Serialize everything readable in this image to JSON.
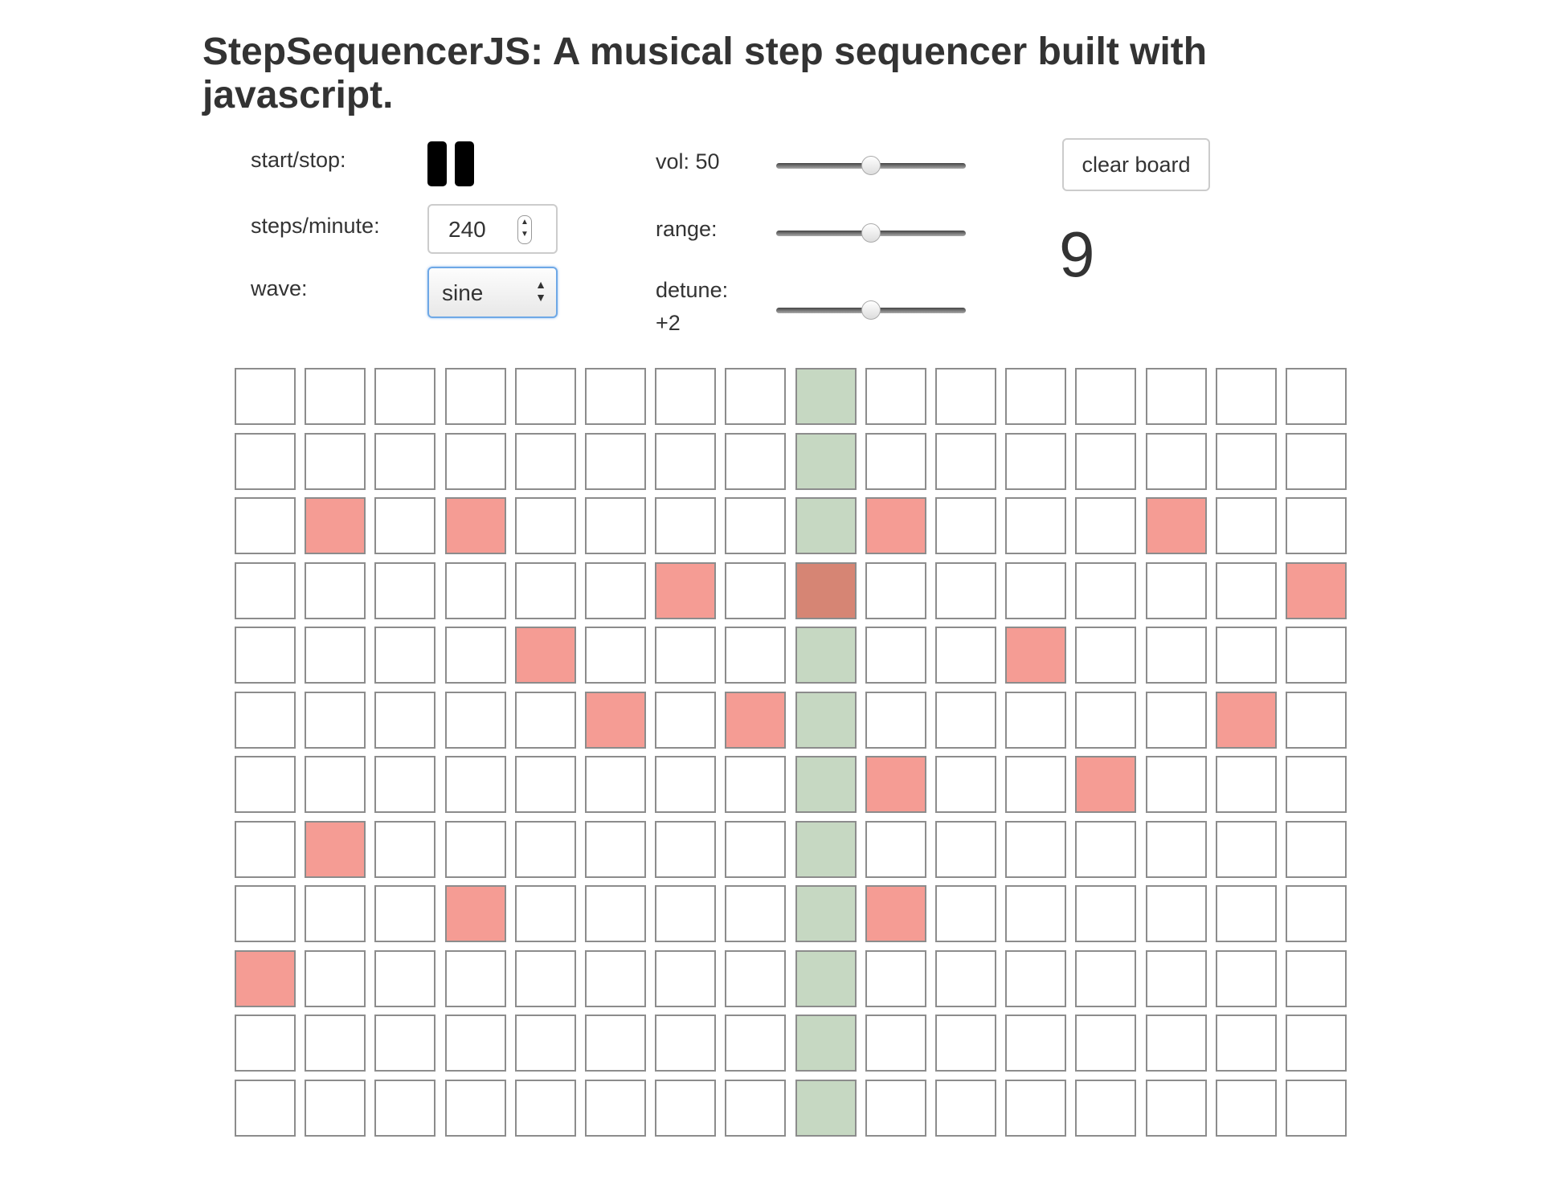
{
  "title": "StepSequencerJS: A musical step sequencer built with javascript.",
  "controls": {
    "start_stop_label": "start/stop:",
    "steps_label": "steps/minute:",
    "steps_value": "240",
    "wave_label": "wave:",
    "wave_value": "sine",
    "vol_label": "vol: 50",
    "vol_level": 0.5,
    "range_label": "range:",
    "range_level": 0.5,
    "detune_label": "detune:",
    "detune_value": "+2",
    "detune_level": 0.5,
    "clear_label": "clear board",
    "step_counter": "9"
  },
  "board": {
    "rows": 12,
    "cols": 16,
    "current_step": 9,
    "active": [
      [
        3,
        2
      ],
      [
        3,
        4
      ],
      [
        3,
        10
      ],
      [
        3,
        14
      ],
      [
        4,
        7
      ],
      [
        4,
        9
      ],
      [
        4,
        16
      ],
      [
        5,
        5
      ],
      [
        5,
        12
      ],
      [
        6,
        6
      ],
      [
        6,
        8
      ],
      [
        6,
        15
      ],
      [
        7,
        10
      ],
      [
        7,
        13
      ],
      [
        8,
        2
      ],
      [
        9,
        4
      ],
      [
        9,
        10
      ],
      [
        10,
        1
      ]
    ],
    "colors": {
      "empty": "#ffffff",
      "active": "#f59c94",
      "playhead": "#c6d8c2",
      "playhead_active": "#d68574",
      "border": "#8c8c8c"
    }
  }
}
